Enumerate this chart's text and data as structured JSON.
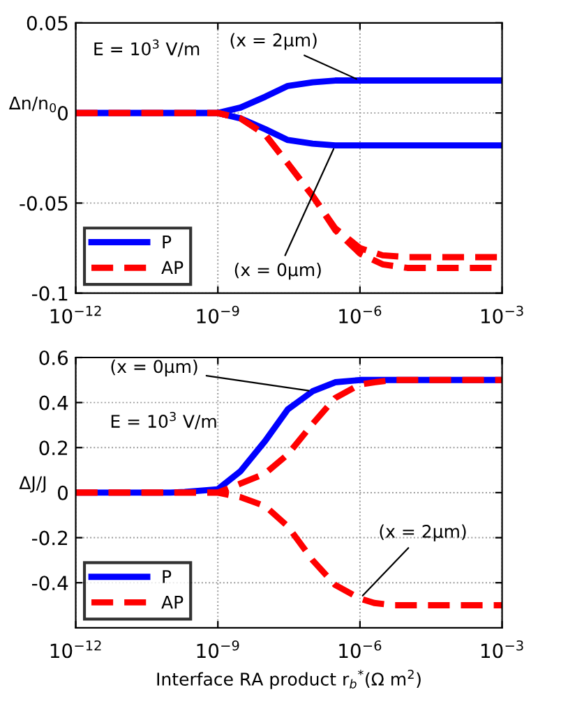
{
  "chart_data": [
    {
      "type": "line",
      "ylabel": "Δn/n$_{0}$",
      "log": "x",
      "grid": true,
      "legend": "bottom left",
      "marker": "none",
      "xlim": [
        1e-12,
        0.001
      ],
      "xticks": [
        {
          "value": 1e-12,
          "label": "10$^{−12}$"
        },
        {
          "value": 1e-09,
          "label": "10$^{−9}$"
        },
        {
          "value": 1e-06,
          "label": "10$^{−6}$"
        },
        {
          "value": 0.001,
          "label": "10$^{−3}$"
        }
      ],
      "ylim": [
        -0.1,
        0.05
      ],
      "yticks": [
        -0.1,
        -0.05,
        0,
        0.05
      ],
      "x": [
        1e-12,
        1e-11,
        1e-10,
        1e-09,
        3e-09,
        1e-08,
        3e-08,
        1e-07,
        3e-07,
        1e-06,
        3e-06,
        1e-05,
        0.0001,
        0.001
      ],
      "series": [
        {
          "name": "P",
          "color": "#0000ff",
          "line_style": "solid",
          "values": [
            0,
            0,
            0,
            0,
            0.003,
            0.009,
            0.015,
            0.017,
            0.018,
            0.018,
            0.018,
            0.018,
            0.018,
            0.018
          ]
        },
        {
          "color": "#0000ff",
          "line_style": "solid",
          "values": [
            0,
            0,
            0,
            0,
            -0.003,
            -0.009,
            -0.015,
            -0.017,
            -0.018,
            -0.018,
            -0.018,
            -0.018,
            -0.018,
            -0.018
          ]
        },
        {
          "name": "AP",
          "color": "#ff0000",
          "line_style": "dashed",
          "values": [
            0,
            0,
            0,
            0,
            -0.003,
            -0.012,
            -0.028,
            -0.046,
            -0.064,
            -0.075,
            -0.079,
            -0.08,
            -0.08,
            -0.08
          ]
        },
        {
          "color": "#ff0000",
          "line_style": "dashed",
          "values": [
            0,
            0,
            0,
            0,
            -0.003,
            -0.012,
            -0.028,
            -0.046,
            -0.065,
            -0.078,
            -0.084,
            -0.086,
            -0.086,
            -0.086
          ]
        }
      ],
      "annotations": [
        "E = 10$^{3}$ V/m",
        {
          "text": "(x = 2μm)",
          "x": 1e-06,
          "y": 0.018
        },
        {
          "text": "(x = 0μm)",
          "x": 3e-07,
          "y": -0.018
        }
      ]
    },
    {
      "type": "line",
      "ylabel": "ΔJ/J",
      "xlabel": "Interface RA product r$_{b}$$^{*}$(Ω m$^{2}$)",
      "log": "x",
      "grid": true,
      "legend": "bottom left",
      "marker": "none",
      "xlim": [
        1e-12,
        0.001
      ],
      "xticks": [
        {
          "value": 1e-12,
          "label": "10$^{−12}$"
        },
        {
          "value": 1e-09,
          "label": "10$^{−9}$"
        },
        {
          "value": 1e-06,
          "label": "10$^{−6}$"
        },
        {
          "value": 0.001,
          "label": "10$^{−3}$"
        }
      ],
      "ylim": [
        -0.6,
        0.6
      ],
      "yticks": [
        -0.4,
        -0.2,
        0,
        0.2,
        0.4,
        0.6
      ],
      "x": [
        1e-12,
        1e-11,
        1e-10,
        2e-10,
        1e-09,
        3e-09,
        1e-08,
        3e-08,
        1e-07,
        3e-07,
        1e-06,
        2e-06,
        5e-06,
        1e-05,
        0.0001,
        0.001
      ],
      "series": [
        {
          "name": "P",
          "color": "#0000ff",
          "line_style": "solid",
          "values": [
            0,
            0,
            0,
            0.003,
            0.015,
            0.095,
            0.23,
            0.37,
            0.45,
            0.49,
            0.5,
            0.5,
            0.5,
            0.5,
            0.5,
            0.5
          ]
        },
        {
          "name": "AP",
          "color": "#ff0000",
          "line_style": "dashed",
          "values": [
            0,
            0,
            0,
            0,
            0,
            0.04,
            0.085,
            0.17,
            0.305,
            0.42,
            0.48,
            0.49,
            0.5,
            0.5,
            0.5,
            0.5
          ]
        },
        {
          "color": "#ff0000",
          "line_style": "dashed",
          "values": [
            0,
            0,
            0,
            0,
            0,
            -0.02,
            -0.06,
            -0.15,
            -0.3,
            -0.41,
            -0.47,
            -0.49,
            -0.5,
            -0.5,
            -0.5,
            -0.5
          ]
        }
      ],
      "annotations": [
        "E = 10$^{3}$ V/m",
        {
          "text": "(x = 0μm)",
          "x": 1e-07,
          "y": 0.45
        },
        {
          "text": "(x = 2μm)",
          "x": 1e-06,
          "y": -0.47
        }
      ]
    }
  ]
}
